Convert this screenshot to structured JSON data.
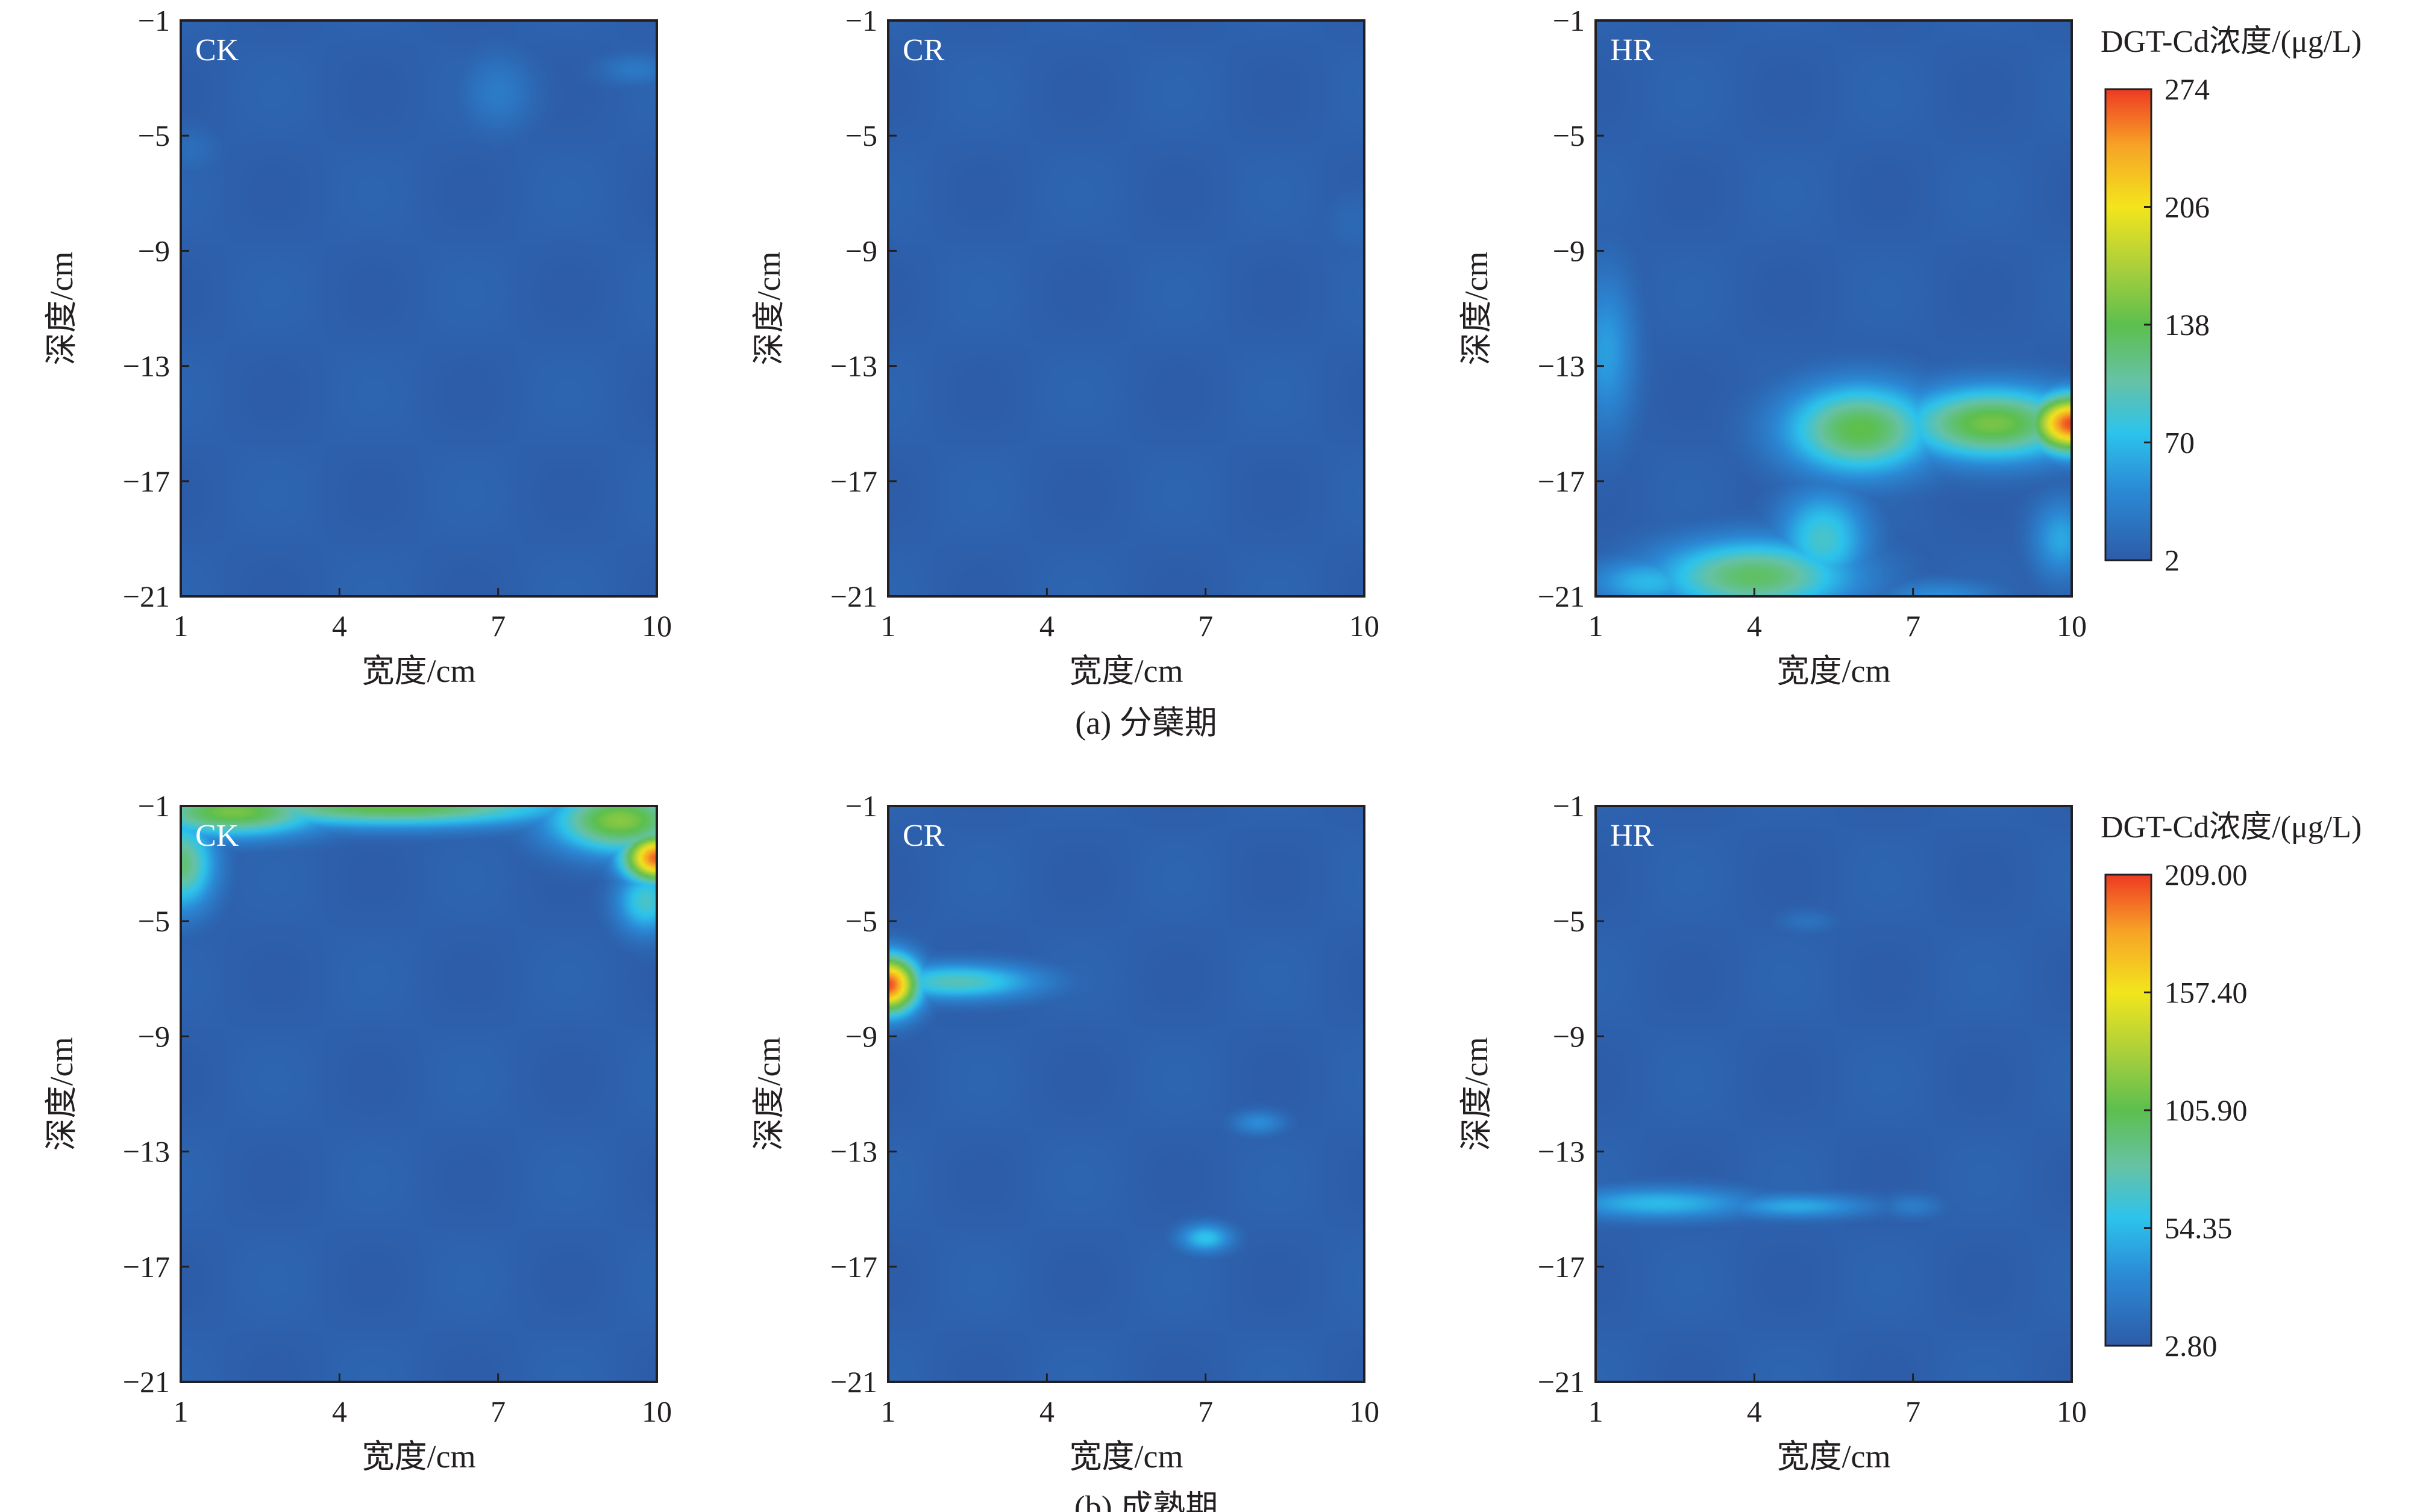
{
  "figure": {
    "captions": [
      "(a) 分蘖期",
      "(b) 成熟期"
    ]
  },
  "chart_data": [
    {
      "type": "heatmap",
      "row": "a",
      "panel_label": "CK",
      "xlabel": "宽度/cm",
      "ylabel": "深度/cm",
      "xticks": [
        "1",
        "4",
        "7",
        "10"
      ],
      "yticks": [
        "−1",
        "−5",
        "−9",
        "−13",
        "−17",
        "−21"
      ],
      "xlim": [
        1,
        10
      ],
      "ylim": [
        -21,
        -1
      ],
      "colorscale": {
        "min": 2,
        "max": 274
      },
      "hotspots": [
        {
          "x": 7.0,
          "y": -3.5,
          "value": 30,
          "sx": 0.5,
          "sy": 1.0
        },
        {
          "x": 9.6,
          "y": -2.7,
          "value": 28,
          "sx": 0.5,
          "sy": 0.4
        },
        {
          "x": 1.2,
          "y": -5.5,
          "value": 18,
          "sx": 0.4,
          "sy": 0.6
        }
      ]
    },
    {
      "type": "heatmap",
      "row": "a",
      "panel_label": "CR",
      "xlabel": "宽度/cm",
      "ylabel": "深度/cm",
      "xticks": [
        "1",
        "4",
        "7",
        "10"
      ],
      "yticks": [
        "−1",
        "−5",
        "−9",
        "−13",
        "−17",
        "−21"
      ],
      "xlim": [
        1,
        10
      ],
      "ylim": [
        -21,
        -1
      ],
      "colorscale": {
        "min": 2,
        "max": 274
      },
      "hotspots": [
        {
          "x": 9.8,
          "y": -8.0,
          "value": 14,
          "sx": 0.4,
          "sy": 0.8
        }
      ]
    },
    {
      "type": "heatmap",
      "row": "a",
      "panel_label": "HR",
      "xlabel": "宽度/cm",
      "ylabel": "深度/cm",
      "xticks": [
        "1",
        "4",
        "7",
        "10"
      ],
      "yticks": [
        "−1",
        "−5",
        "−9",
        "−13",
        "−17",
        "−21"
      ],
      "xlim": [
        1,
        10
      ],
      "ylim": [
        -21,
        -1
      ],
      "colorscale": {
        "min": 2,
        "max": 274
      },
      "hotspots": [
        {
          "x": 10.0,
          "y": -15.0,
          "value": 270,
          "sx": 0.55,
          "sy": 0.7
        },
        {
          "x": 8.5,
          "y": -15.0,
          "value": 150,
          "sx": 1.2,
          "sy": 0.9
        },
        {
          "x": 6.0,
          "y": -15.2,
          "value": 140,
          "sx": 1.0,
          "sy": 1.1
        },
        {
          "x": 4.0,
          "y": -20.3,
          "value": 130,
          "sx": 1.3,
          "sy": 0.9
        },
        {
          "x": 5.3,
          "y": -19.0,
          "value": 90,
          "sx": 0.6,
          "sy": 1.2
        },
        {
          "x": 2.0,
          "y": -20.5,
          "value": 70,
          "sx": 0.8,
          "sy": 0.6
        },
        {
          "x": 1.2,
          "y": -12.5,
          "value": 55,
          "sx": 0.4,
          "sy": 2.0
        },
        {
          "x": 9.8,
          "y": -19.0,
          "value": 60,
          "sx": 0.4,
          "sy": 1.0
        },
        {
          "x": 7.5,
          "y": -21.0,
          "value": 45,
          "sx": 0.8,
          "sy": 0.4
        }
      ]
    },
    {
      "type": "heatmap",
      "row": "b",
      "panel_label": "CK",
      "xlabel": "宽度/cm",
      "ylabel": "深度/cm",
      "xticks": [
        "1",
        "4",
        "7",
        "10"
      ],
      "yticks": [
        "−1",
        "−5",
        "−9",
        "−13",
        "−17",
        "−21"
      ],
      "xlim": [
        1,
        10
      ],
      "ylim": [
        -21,
        -1
      ],
      "colorscale": {
        "min": 2.8,
        "max": 209
      },
      "hotspots": [
        {
          "x": 10.0,
          "y": -2.8,
          "value": 200,
          "sx": 0.45,
          "sy": 0.6
        },
        {
          "x": 9.3,
          "y": -1.5,
          "value": 120,
          "sx": 0.9,
          "sy": 0.8
        },
        {
          "x": 5.0,
          "y": -1.0,
          "value": 110,
          "sx": 2.3,
          "sy": 0.5
        },
        {
          "x": 2.0,
          "y": -1.2,
          "value": 115,
          "sx": 1.2,
          "sy": 0.6
        },
        {
          "x": 1.0,
          "y": -3.0,
          "value": 95,
          "sx": 0.45,
          "sy": 1.1
        },
        {
          "x": 9.8,
          "y": -4.3,
          "value": 70,
          "sx": 0.4,
          "sy": 0.8
        }
      ]
    },
    {
      "type": "heatmap",
      "row": "b",
      "panel_label": "CR",
      "xlabel": "宽度/cm",
      "ylabel": "深度/cm",
      "xticks": [
        "1",
        "4",
        "7",
        "10"
      ],
      "yticks": [
        "−1",
        "−5",
        "−9",
        "−13",
        "−17",
        "−21"
      ],
      "xlim": [
        1,
        10
      ],
      "ylim": [
        -21,
        -1
      ],
      "colorscale": {
        "min": 2.8,
        "max": 209
      },
      "hotspots": [
        {
          "x": 1.0,
          "y": -7.2,
          "value": 205,
          "sx": 0.4,
          "sy": 0.7
        },
        {
          "x": 2.3,
          "y": -7.1,
          "value": 75,
          "sx": 1.1,
          "sy": 0.45
        },
        {
          "x": 7.0,
          "y": -16.0,
          "value": 60,
          "sx": 0.35,
          "sy": 0.35
        },
        {
          "x": 8.0,
          "y": -12.0,
          "value": 35,
          "sx": 0.35,
          "sy": 0.3
        }
      ]
    },
    {
      "type": "heatmap",
      "row": "b",
      "panel_label": "HR",
      "xlabel": "宽度/cm",
      "ylabel": "深度/cm",
      "xticks": [
        "1",
        "4",
        "7",
        "10"
      ],
      "yticks": [
        "−1",
        "−5",
        "−9",
        "−13",
        "−17",
        "−21"
      ],
      "xlim": [
        1,
        10
      ],
      "ylim": [
        -21,
        -1
      ],
      "colorscale": {
        "min": 2.8,
        "max": 209
      },
      "hotspots": [
        {
          "x": 2.2,
          "y": -14.8,
          "value": 55,
          "sx": 1.3,
          "sy": 0.4
        },
        {
          "x": 4.8,
          "y": -14.9,
          "value": 48,
          "sx": 1.0,
          "sy": 0.3
        },
        {
          "x": 7.0,
          "y": -14.9,
          "value": 25,
          "sx": 0.4,
          "sy": 0.3
        },
        {
          "x": 5.0,
          "y": -5.0,
          "value": 18,
          "sx": 0.4,
          "sy": 0.3
        }
      ]
    }
  ],
  "colorbars": [
    {
      "row": "a",
      "title": "DGT-Cd浓度/(μg/L)",
      "min": 2,
      "max": 274,
      "ticks": [
        "274",
        "206",
        "138",
        "70",
        "2"
      ]
    },
    {
      "row": "b",
      "title": "DGT-Cd浓度/(μg/L)",
      "min": 2.8,
      "max": 209,
      "ticks": [
        "209.00",
        "157.40",
        "105.90",
        "54.35",
        "2.80"
      ]
    }
  ],
  "colors": {
    "background_low": "#2d5ca8",
    "gradient": [
      "#2d5ca8",
      "#2b8ad6",
      "#2cc3ec",
      "#66c2a5",
      "#5cbf4e",
      "#a9cf3c",
      "#f3e51c",
      "#f7a326",
      "#ee3a23"
    ]
  }
}
